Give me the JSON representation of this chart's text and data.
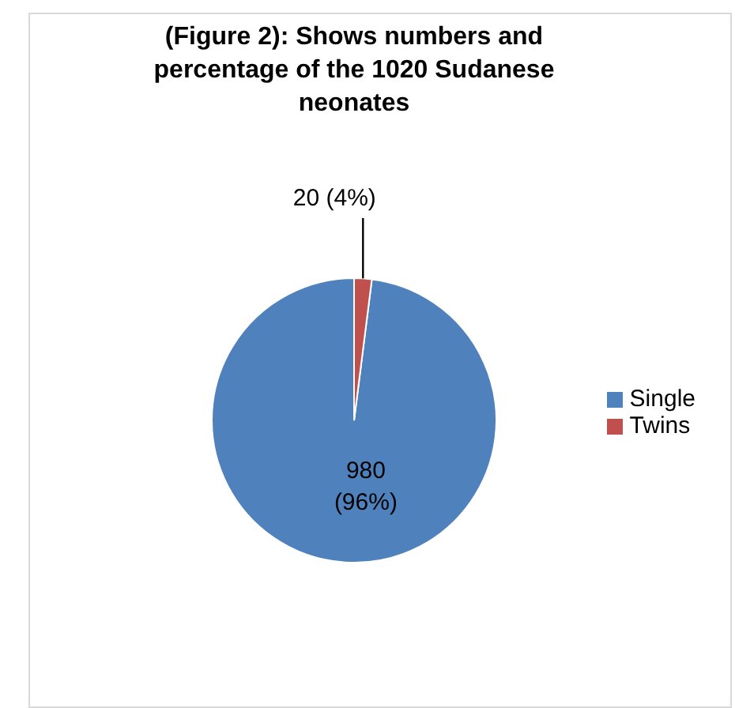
{
  "chart_data": {
    "type": "pie",
    "title": "(Figure 2): Shows numbers and percentage of  the 1020 Sudanese neonates",
    "categories": [
      "Single",
      "Twins"
    ],
    "values": [
      980,
      20
    ],
    "colors": [
      "#4f81bd",
      "#c0504d"
    ],
    "value_labels": [
      "980 (96%)",
      "20 (4%)"
    ],
    "legend": "right"
  }
}
